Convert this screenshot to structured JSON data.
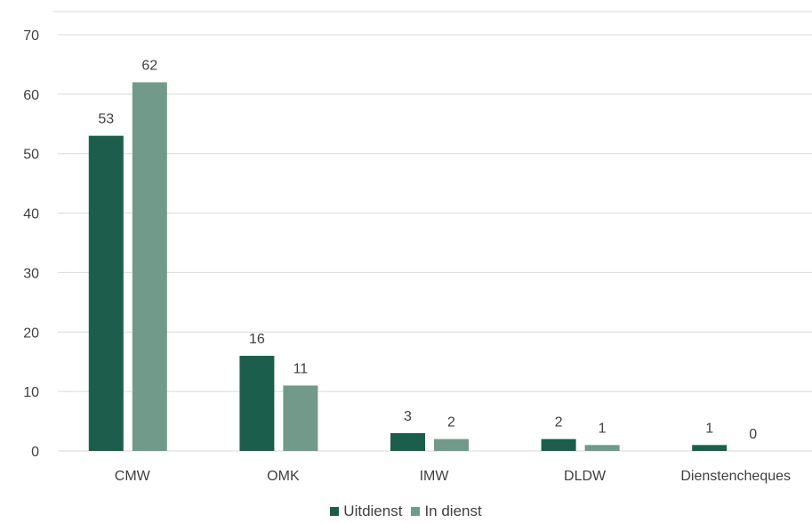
{
  "chart_data": {
    "type": "bar",
    "categories": [
      "CMW",
      "OMK",
      "IMW",
      "DLDW",
      "Dienstencheques"
    ],
    "series": [
      {
        "name": "Uitdienst",
        "values": [
          53,
          16,
          3,
          2,
          1
        ],
        "color": "#1b5e4b"
      },
      {
        "name": "In dienst",
        "values": [
          62,
          11,
          2,
          1,
          0
        ],
        "color": "#729a8a"
      }
    ],
    "ylim": [
      0,
      70
    ],
    "yticks": [
      0,
      10,
      20,
      30,
      40,
      50,
      60,
      70
    ],
    "grid": true,
    "legend": "bottom",
    "data_labels": true
  }
}
